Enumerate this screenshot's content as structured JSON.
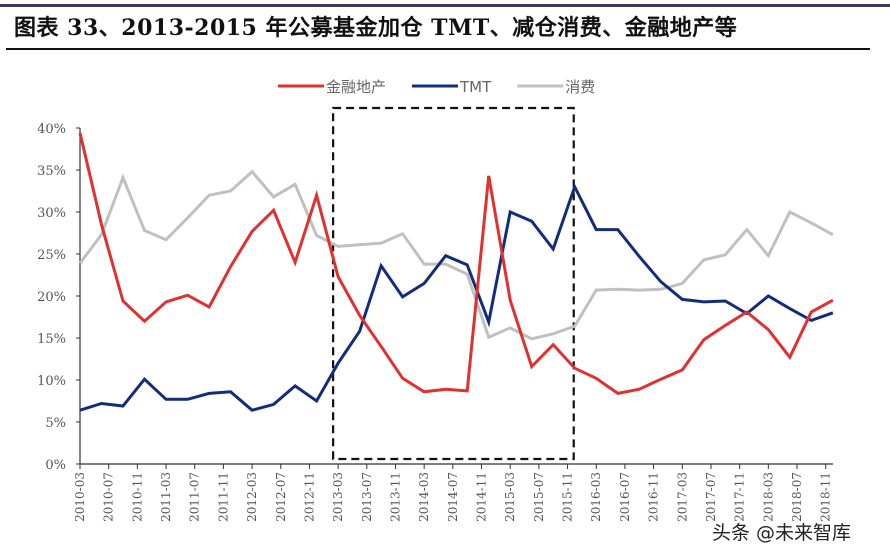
{
  "header": {
    "title": "图表 33、2013-2015 年公募基金加仓 TMT、减仓消费、金融地产等"
  },
  "watermark": "头条 @未来智库",
  "chart_data": {
    "type": "line",
    "title": "",
    "xlabel": "",
    "ylabel": "",
    "ylim": [
      0,
      40
    ],
    "yticks": [
      "0%",
      "5%",
      "10%",
      "15%",
      "20%",
      "25%",
      "30%",
      "35%",
      "40%"
    ],
    "xtick_labels": [
      "2010-03",
      "2010-07",
      "2010-11",
      "2011-03",
      "2011-07",
      "2011-11",
      "2012-03",
      "2012-07",
      "2012-11",
      "2013-03",
      "2013-07",
      "2013-11",
      "2014-03",
      "2014-07",
      "2014-11",
      "2015-03",
      "2015-07",
      "2015-11",
      "2016-03",
      "2016-07",
      "2016-11",
      "2017-03",
      "2017-07",
      "2017-11",
      "2018-03",
      "2018-07",
      "2018-11"
    ],
    "x": [
      "2010-03",
      "2010-06",
      "2010-09",
      "2010-12",
      "2011-03",
      "2011-06",
      "2011-09",
      "2011-12",
      "2012-03",
      "2012-06",
      "2012-09",
      "2012-12",
      "2013-03",
      "2013-06",
      "2013-09",
      "2013-12",
      "2014-03",
      "2014-06",
      "2014-09",
      "2014-12",
      "2015-03",
      "2015-06",
      "2015-09",
      "2015-12",
      "2016-03",
      "2016-06",
      "2016-09",
      "2016-12",
      "2017-03",
      "2017-06",
      "2017-09",
      "2017-12",
      "2018-03",
      "2018-06",
      "2018-09",
      "2018-12"
    ],
    "grid": false,
    "legend": "top-center",
    "highlight_box": {
      "from": "2013-03",
      "to": "2015-12"
    },
    "series": [
      {
        "name": "金融地产",
        "color": "#e03030",
        "values": [
          39.4,
          28.5,
          19.4,
          17.0,
          19.3,
          20.1,
          18.7,
          23.5,
          27.7,
          30.2,
          24.0,
          32.0,
          22.3,
          17.7,
          14.0,
          10.2,
          8.6,
          8.9,
          8.7,
          34.3,
          19.5,
          11.6,
          14.2,
          11.4,
          10.2,
          8.4,
          8.9,
          10.1,
          11.2,
          14.8,
          16.5,
          18.1,
          16.0,
          12.7,
          18.1,
          19.5
        ]
      },
      {
        "name": "TMT",
        "color": "#142c7c",
        "values": [
          6.4,
          7.2,
          6.9,
          10.1,
          7.7,
          7.7,
          8.4,
          8.6,
          6.4,
          7.1,
          9.3,
          7.5,
          12.0,
          15.8,
          23.6,
          19.9,
          21.5,
          24.8,
          23.7,
          16.9,
          30.0,
          28.9,
          25.6,
          33.0,
          27.9,
          27.9,
          24.7,
          21.7,
          19.6,
          19.3,
          19.4,
          17.9,
          20.0,
          18.5,
          17.1,
          18.0
        ]
      },
      {
        "name": "消费",
        "color": "#c0c0c0",
        "values": [
          23.9,
          27.3,
          34.1,
          27.8,
          26.7,
          29.3,
          32.0,
          32.5,
          34.8,
          31.8,
          33.3,
          27.2,
          25.9,
          26.1,
          26.3,
          27.4,
          23.8,
          23.8,
          22.6,
          15.1,
          16.2,
          14.9,
          15.5,
          16.4,
          20.7,
          20.8,
          20.7,
          20.8,
          21.5,
          24.3,
          24.9,
          27.9,
          24.8,
          30.0,
          28.7,
          27.3
        ]
      }
    ]
  }
}
